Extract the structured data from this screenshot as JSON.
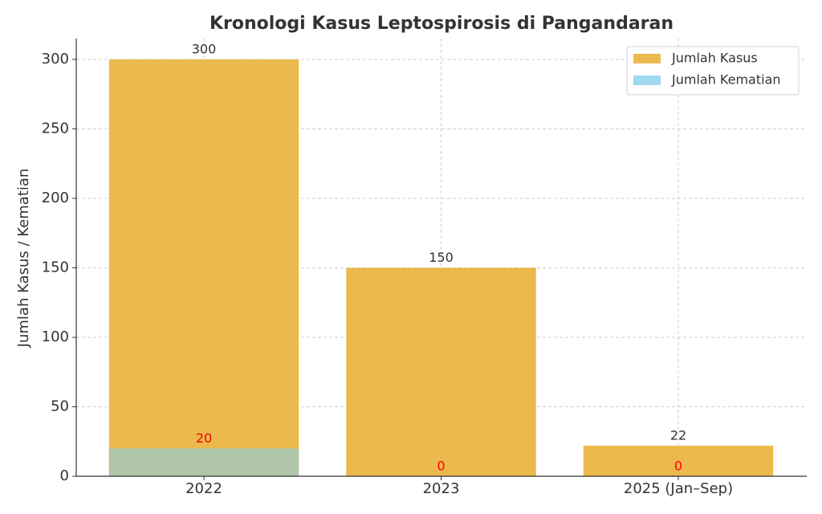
{
  "chart_data": {
    "type": "bar",
    "title": "Kronologi Kasus Leptospirosis di Pangandaran",
    "ylabel": "Jumlah Kasus / Kematian",
    "categories": [
      "2022",
      "2023",
      "2025 (Jan–Sep)"
    ],
    "series": [
      {
        "name": "Jumlah Kasus",
        "color": "#ebb94d",
        "label_color": "#333333",
        "values": [
          300,
          150,
          22
        ]
      },
      {
        "name": "Jumlah Kematian",
        "color": "#87ceeb",
        "label_color": "#ff0000",
        "values": [
          20,
          0,
          0
        ]
      }
    ],
    "ylim": [
      0,
      315
    ],
    "yticks": [
      0,
      50,
      100,
      150,
      200,
      250,
      300
    ],
    "grid": true,
    "legend": "upper right"
  }
}
